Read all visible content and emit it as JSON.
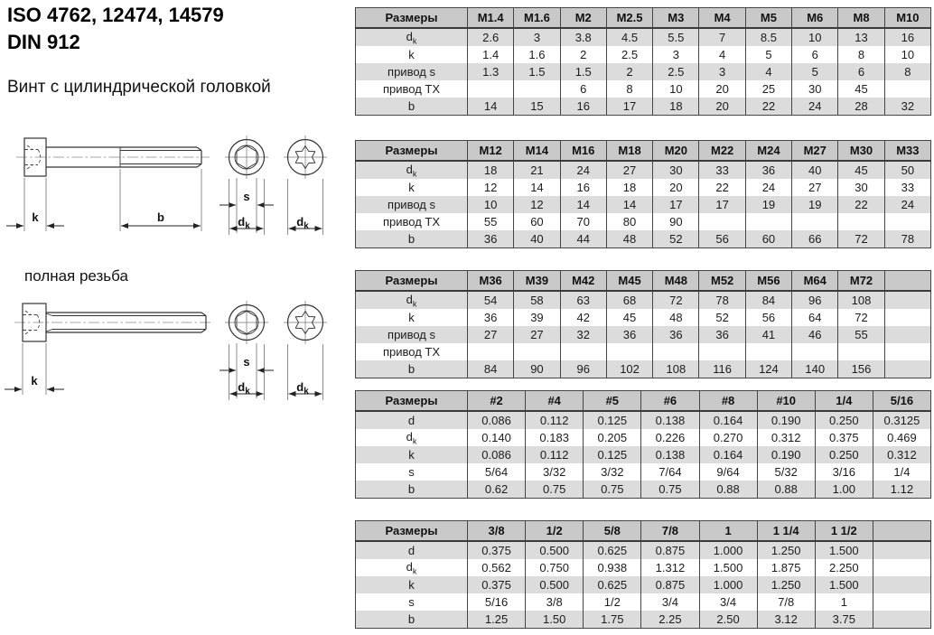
{
  "header": {
    "title_line1": "ISO 4762, 12474, 14579",
    "title_line2": "DIN 912",
    "subtitle": "Винт с цилиндрической головкой"
  },
  "drawing": {
    "full_thread": "полная резьба",
    "labels": {
      "k": "k",
      "b": "b",
      "s": "s",
      "d": "d",
      "d_sub": "k"
    }
  },
  "colors": {
    "table_header_bg": "#c9c9c9",
    "table_stripe_bg": "#dcdcdc",
    "table_border": "#454545"
  },
  "tables": [
    {
      "header": [
        "Размеры",
        "M1.4",
        "M1.6",
        "M2",
        "M2.5",
        "M3",
        "M4",
        "M5",
        "M6",
        "M8",
        "M10"
      ],
      "rows": [
        {
          "label": "d_k",
          "values": [
            "2.6",
            "3",
            "3.8",
            "4.5",
            "5.5",
            "7",
            "8.5",
            "10",
            "13",
            "16"
          ]
        },
        {
          "label": "k",
          "values": [
            "1.4",
            "1.6",
            "2",
            "2.5",
            "3",
            "4",
            "5",
            "6",
            "8",
            "10"
          ]
        },
        {
          "label": "привод s",
          "values": [
            "1.3",
            "1.5",
            "1.5",
            "2",
            "2.5",
            "3",
            "4",
            "5",
            "6",
            "8"
          ]
        },
        {
          "label": "привод TX",
          "values": [
            "",
            "",
            "6",
            "8",
            "10",
            "20",
            "25",
            "30",
            "45",
            ""
          ]
        },
        {
          "label": "b",
          "values": [
            "14",
            "15",
            "16",
            "17",
            "18",
            "20",
            "22",
            "24",
            "28",
            "32"
          ]
        }
      ]
    },
    {
      "header": [
        "Размеры",
        "M12",
        "M14",
        "M16",
        "M18",
        "M20",
        "M22",
        "M24",
        "M27",
        "M30",
        "M33"
      ],
      "rows": [
        {
          "label": "d_k",
          "values": [
            "18",
            "21",
            "24",
            "27",
            "30",
            "33",
            "36",
            "40",
            "45",
            "50"
          ]
        },
        {
          "label": "k",
          "values": [
            "12",
            "14",
            "16",
            "18",
            "20",
            "22",
            "24",
            "27",
            "30",
            "33"
          ]
        },
        {
          "label": "привод s",
          "values": [
            "10",
            "12",
            "14",
            "14",
            "17",
            "17",
            "19",
            "19",
            "22",
            "24"
          ]
        },
        {
          "label": "привод TX",
          "values": [
            "55",
            "60",
            "70",
            "80",
            "90",
            "",
            "",
            "",
            "",
            ""
          ]
        },
        {
          "label": "b",
          "values": [
            "36",
            "40",
            "44",
            "48",
            "52",
            "56",
            "60",
            "66",
            "72",
            "78"
          ]
        }
      ]
    },
    {
      "header": [
        "Размеры",
        "M36",
        "M39",
        "M42",
        "M45",
        "M48",
        "M52",
        "M56",
        "M64",
        "M72",
        ""
      ],
      "rows": [
        {
          "label": "d_k",
          "values": [
            "54",
            "58",
            "63",
            "68",
            "72",
            "78",
            "84",
            "96",
            "108",
            ""
          ]
        },
        {
          "label": "k",
          "values": [
            "36",
            "39",
            "42",
            "45",
            "48",
            "52",
            "56",
            "64",
            "72",
            ""
          ]
        },
        {
          "label": "привод s",
          "values": [
            "27",
            "27",
            "32",
            "36",
            "36",
            "36",
            "41",
            "46",
            "55",
            ""
          ]
        },
        {
          "label": "привод TX",
          "values": [
            "",
            "",
            "",
            "",
            "",
            "",
            "",
            "",
            "",
            ""
          ]
        },
        {
          "label": "b",
          "values": [
            "84",
            "90",
            "96",
            "102",
            "108",
            "116",
            "124",
            "140",
            "156",
            ""
          ]
        }
      ]
    },
    {
      "header": [
        "Размеры",
        "#2",
        "#4",
        "#5",
        "#6",
        "#8",
        "#10",
        "1/4",
        "5/16"
      ],
      "rows": [
        {
          "label": "d",
          "values": [
            "0.086",
            "0.112",
            "0.125",
            "0.138",
            "0.164",
            "0.190",
            "0.250",
            "0.3125"
          ]
        },
        {
          "label": "d_k",
          "values": [
            "0.140",
            "0.183",
            "0.205",
            "0.226",
            "0.270",
            "0.312",
            "0.375",
            "0.469"
          ]
        },
        {
          "label": "k",
          "values": [
            "0.086",
            "0.112",
            "0.125",
            "0.138",
            "0.164",
            "0.190",
            "0.250",
            "0.312"
          ]
        },
        {
          "label": "s",
          "values": [
            "5/64",
            "3/32",
            "3/32",
            "7/64",
            "9/64",
            "5/32",
            "3/16",
            "1/4"
          ]
        },
        {
          "label": "b",
          "values": [
            "0.62",
            "0.75",
            "0.75",
            "0.75",
            "0.88",
            "0.88",
            "1.00",
            "1.12"
          ]
        }
      ]
    },
    {
      "header": [
        "Размеры",
        "3/8",
        "1/2",
        "5/8",
        "7/8",
        "1",
        "1 1/4",
        "1 1/2",
        ""
      ],
      "rows": [
        {
          "label": "d",
          "values": [
            "0.375",
            "0.500",
            "0.625",
            "0.875",
            "1.000",
            "1.250",
            "1.500",
            ""
          ]
        },
        {
          "label": "d_k",
          "values": [
            "0.562",
            "0.750",
            "0.938",
            "1.312",
            "1.500",
            "1.875",
            "2.250",
            ""
          ]
        },
        {
          "label": "k",
          "values": [
            "0.375",
            "0.500",
            "0.625",
            "0.875",
            "1.000",
            "1.250",
            "1.500",
            ""
          ]
        },
        {
          "label": "s",
          "values": [
            "5/16",
            "3/8",
            "1/2",
            "3/4",
            "3/4",
            "7/8",
            "1",
            ""
          ]
        },
        {
          "label": "b",
          "values": [
            "1.25",
            "1.50",
            "1.75",
            "2.25",
            "2.50",
            "3.12",
            "3.75",
            ""
          ]
        }
      ]
    }
  ]
}
